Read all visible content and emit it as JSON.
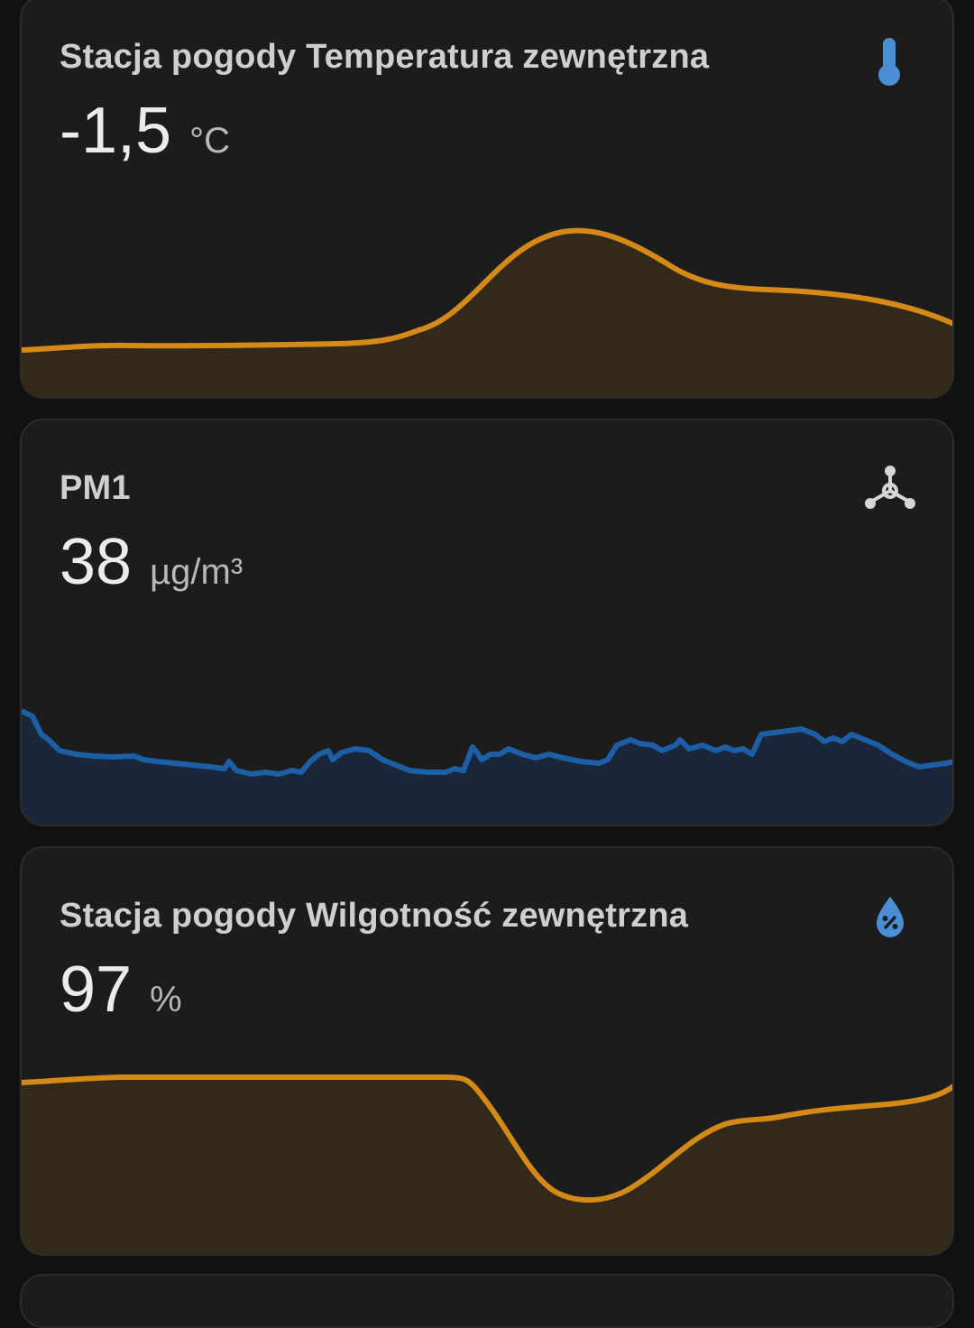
{
  "cards": [
    {
      "title": "Stacja pogody Temperatura zewnętrzna",
      "value": "-1,5",
      "unit": "°C",
      "icon": "thermometer-icon",
      "color": "#d58a17",
      "fill": "#32291b"
    },
    {
      "title": "PM1",
      "value": "38",
      "unit": "µg/m³",
      "icon": "molecule-icon",
      "color": "#1d5fa6",
      "fill": "#1a2739"
    },
    {
      "title": "Stacja pogody Wilgotność zewnętrzna",
      "value": "97",
      "unit": "%",
      "icon": "water-percent-icon",
      "color": "#d58a17",
      "fill": "#32291b"
    }
  ]
}
